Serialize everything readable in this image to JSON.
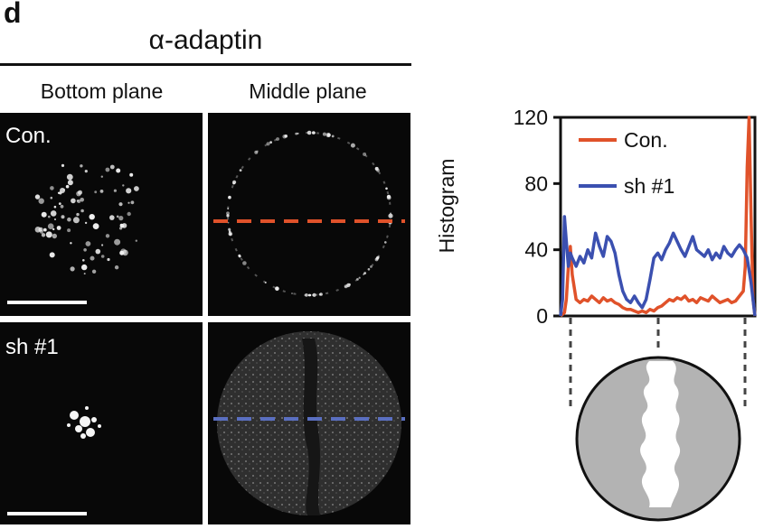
{
  "figure": {
    "panel_letter": "d",
    "title": "α-adaptin",
    "columns": [
      "Bottom plane",
      "Middle plane"
    ],
    "rows": [
      "Con.",
      "sh #1"
    ]
  },
  "colors": {
    "con": "#e0522a",
    "sh": "#3b50b0",
    "cell_fill": "#b3b3b3",
    "micro_bg": "#080808"
  },
  "chart_data": {
    "type": "line",
    "ylabel": "Histogram",
    "ylim": [
      0,
      120
    ],
    "yticks": [
      "0",
      "40",
      "80",
      "120"
    ],
    "xlim": [
      0,
      100
    ],
    "legend_position": "top-left",
    "series": [
      {
        "name": "Con.",
        "color": "#e0522a",
        "x": [
          0,
          2,
          3,
          4,
          5,
          6,
          8,
          10,
          12,
          14,
          16,
          18,
          20,
          22,
          24,
          26,
          28,
          30,
          32,
          34,
          36,
          38,
          40,
          42,
          44,
          46,
          48,
          50,
          52,
          54,
          56,
          58,
          60,
          62,
          64,
          66,
          68,
          70,
          72,
          74,
          76,
          78,
          80,
          82,
          84,
          86,
          88,
          90,
          92,
          94,
          95,
          96,
          97,
          98,
          99,
          100
        ],
        "y": [
          0,
          2,
          10,
          30,
          42,
          25,
          10,
          8,
          10,
          9,
          12,
          10,
          8,
          11,
          9,
          10,
          8,
          7,
          5,
          4,
          4,
          3,
          2,
          3,
          2,
          4,
          3,
          5,
          6,
          8,
          10,
          9,
          11,
          10,
          12,
          9,
          10,
          8,
          11,
          10,
          9,
          12,
          10,
          8,
          9,
          10,
          8,
          9,
          12,
          15,
          30,
          90,
          120,
          60,
          10,
          0
        ]
      },
      {
        "name": "sh #1",
        "color": "#3b50b0",
        "x": [
          0,
          1,
          2,
          3,
          4,
          5,
          6,
          8,
          10,
          12,
          14,
          16,
          18,
          20,
          22,
          24,
          26,
          28,
          30,
          32,
          34,
          36,
          38,
          40,
          42,
          44,
          46,
          48,
          50,
          52,
          54,
          56,
          58,
          60,
          62,
          64,
          66,
          68,
          70,
          72,
          74,
          76,
          78,
          80,
          82,
          84,
          86,
          88,
          90,
          92,
          94,
          96,
          98,
          100
        ],
        "y": [
          0,
          10,
          60,
          45,
          30,
          38,
          35,
          30,
          36,
          32,
          40,
          35,
          50,
          42,
          36,
          48,
          45,
          38,
          25,
          15,
          10,
          8,
          12,
          8,
          5,
          10,
          22,
          35,
          38,
          34,
          40,
          44,
          50,
          45,
          40,
          36,
          42,
          48,
          40,
          38,
          36,
          40,
          34,
          38,
          35,
          42,
          38,
          36,
          40,
          43,
          40,
          35,
          20,
          0
        ]
      }
    ]
  }
}
